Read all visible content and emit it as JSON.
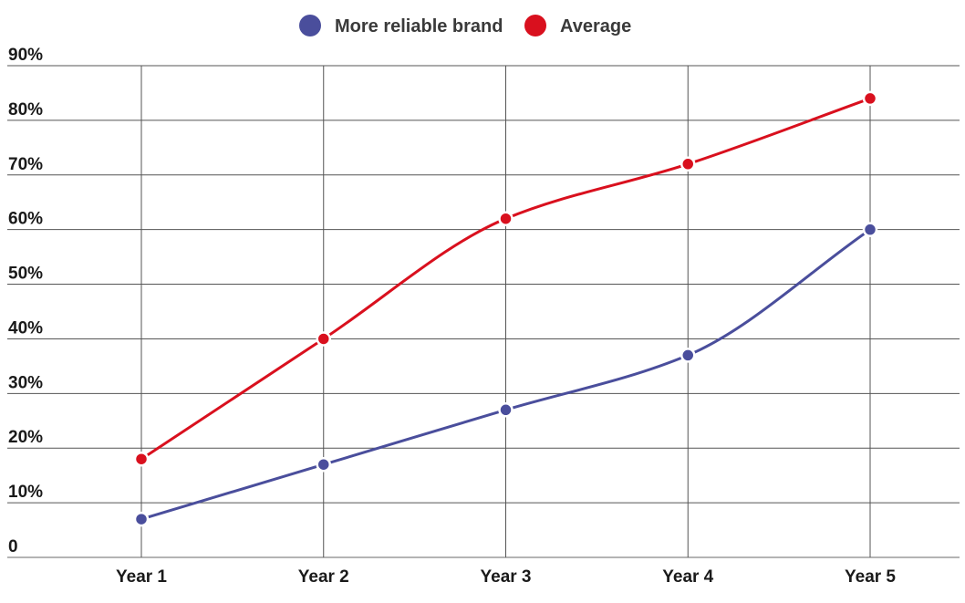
{
  "chart_data": {
    "type": "line",
    "title": "",
    "xlabel": "",
    "ylabel": "",
    "categories": [
      "Year 1",
      "Year 2",
      "Year 3",
      "Year 4",
      "Year 5"
    ],
    "ylim": [
      0,
      90
    ],
    "yticks": [
      0,
      10,
      20,
      30,
      40,
      50,
      60,
      70,
      80,
      90
    ],
    "ytick_labels": [
      "0",
      "10%",
      "20%",
      "30%",
      "40%",
      "50%",
      "60%",
      "70%",
      "80%",
      "90%"
    ],
    "grid": true,
    "legend_position": "top-center",
    "series": [
      {
        "name": "More reliable brand",
        "color": "#4a4e9c",
        "values": [
          7,
          17,
          27,
          37,
          60
        ]
      },
      {
        "name": "Average",
        "color": "#d9101e",
        "values": [
          18,
          40,
          62,
          72,
          84
        ]
      }
    ]
  }
}
